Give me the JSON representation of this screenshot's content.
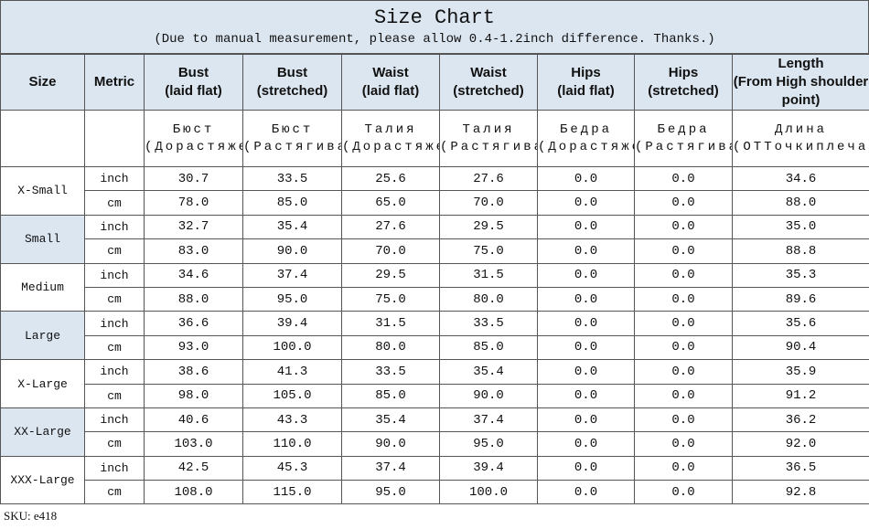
{
  "title": "Size Chart",
  "subtitle": "(Due to manual measurement, please allow 0.4-1.2inch difference. Thanks.)",
  "table": {
    "header": [
      [
        "Size"
      ],
      [
        "Metric"
      ],
      [
        "Bust",
        "(laid flat)"
      ],
      [
        "Bust",
        "(stretched)"
      ],
      [
        "Waist",
        "(laid flat)"
      ],
      [
        "Waist",
        "(stretched)"
      ],
      [
        "Hips",
        "(laid flat)"
      ],
      [
        "Hips",
        "(stretched)"
      ],
      [
        "Length",
        "(From High shoulder point)"
      ]
    ],
    "header_ru": [
      "Бюст (Дорастяжения)",
      "Бюст (Растягиваетс",
      "Талия (Дорастяжения)",
      "Талия (Растягиваетс",
      "Бедра (Дорастяжения)",
      "Бедра (Растягиваетс",
      "Длина (ОТТочкиплеча)"
    ],
    "rows": [
      {
        "size": "X-Small",
        "lines": [
          [
            "inch",
            "30.7",
            "33.5",
            "25.6",
            "27.6",
            "0.0",
            "0.0",
            "34.6"
          ],
          [
            "cm",
            "78.0",
            "85.0",
            "65.0",
            "70.0",
            "0.0",
            "0.0",
            "88.0"
          ]
        ]
      },
      {
        "size": "Small",
        "lines": [
          [
            "inch",
            "32.7",
            "35.4",
            "27.6",
            "29.5",
            "0.0",
            "0.0",
            "35.0"
          ],
          [
            "cm",
            "83.0",
            "90.0",
            "70.0",
            "75.0",
            "0.0",
            "0.0",
            "88.8"
          ]
        ]
      },
      {
        "size": "Medium",
        "lines": [
          [
            "inch",
            "34.6",
            "37.4",
            "29.5",
            "31.5",
            "0.0",
            "0.0",
            "35.3"
          ],
          [
            "cm",
            "88.0",
            "95.0",
            "75.0",
            "80.0",
            "0.0",
            "0.0",
            "89.6"
          ]
        ]
      },
      {
        "size": "Large",
        "lines": [
          [
            "inch",
            "36.6",
            "39.4",
            "31.5",
            "33.5",
            "0.0",
            "0.0",
            "35.6"
          ],
          [
            "cm",
            "93.0",
            "100.0",
            "80.0",
            "85.0",
            "0.0",
            "0.0",
            "90.4"
          ]
        ]
      },
      {
        "size": "X-Large",
        "lines": [
          [
            "inch",
            "38.6",
            "41.3",
            "33.5",
            "35.4",
            "0.0",
            "0.0",
            "35.9"
          ],
          [
            "cm",
            "98.0",
            "105.0",
            "85.0",
            "90.0",
            "0.0",
            "0.0",
            "91.2"
          ]
        ]
      },
      {
        "size": "XX-Large",
        "lines": [
          [
            "inch",
            "40.6",
            "43.3",
            "35.4",
            "37.4",
            "0.0",
            "0.0",
            "36.2"
          ],
          [
            "cm",
            "103.0",
            "110.0",
            "90.0",
            "95.0",
            "0.0",
            "0.0",
            "92.0"
          ]
        ]
      },
      {
        "size": "XXX-Large",
        "lines": [
          [
            "inch",
            "42.5",
            "45.3",
            "37.4",
            "39.4",
            "0.0",
            "0.0",
            "36.5"
          ],
          [
            "cm",
            "108.0",
            "115.0",
            "95.0",
            "100.0",
            "0.0",
            "0.0",
            "92.8"
          ]
        ]
      }
    ]
  },
  "footer": "SKU: e418"
}
